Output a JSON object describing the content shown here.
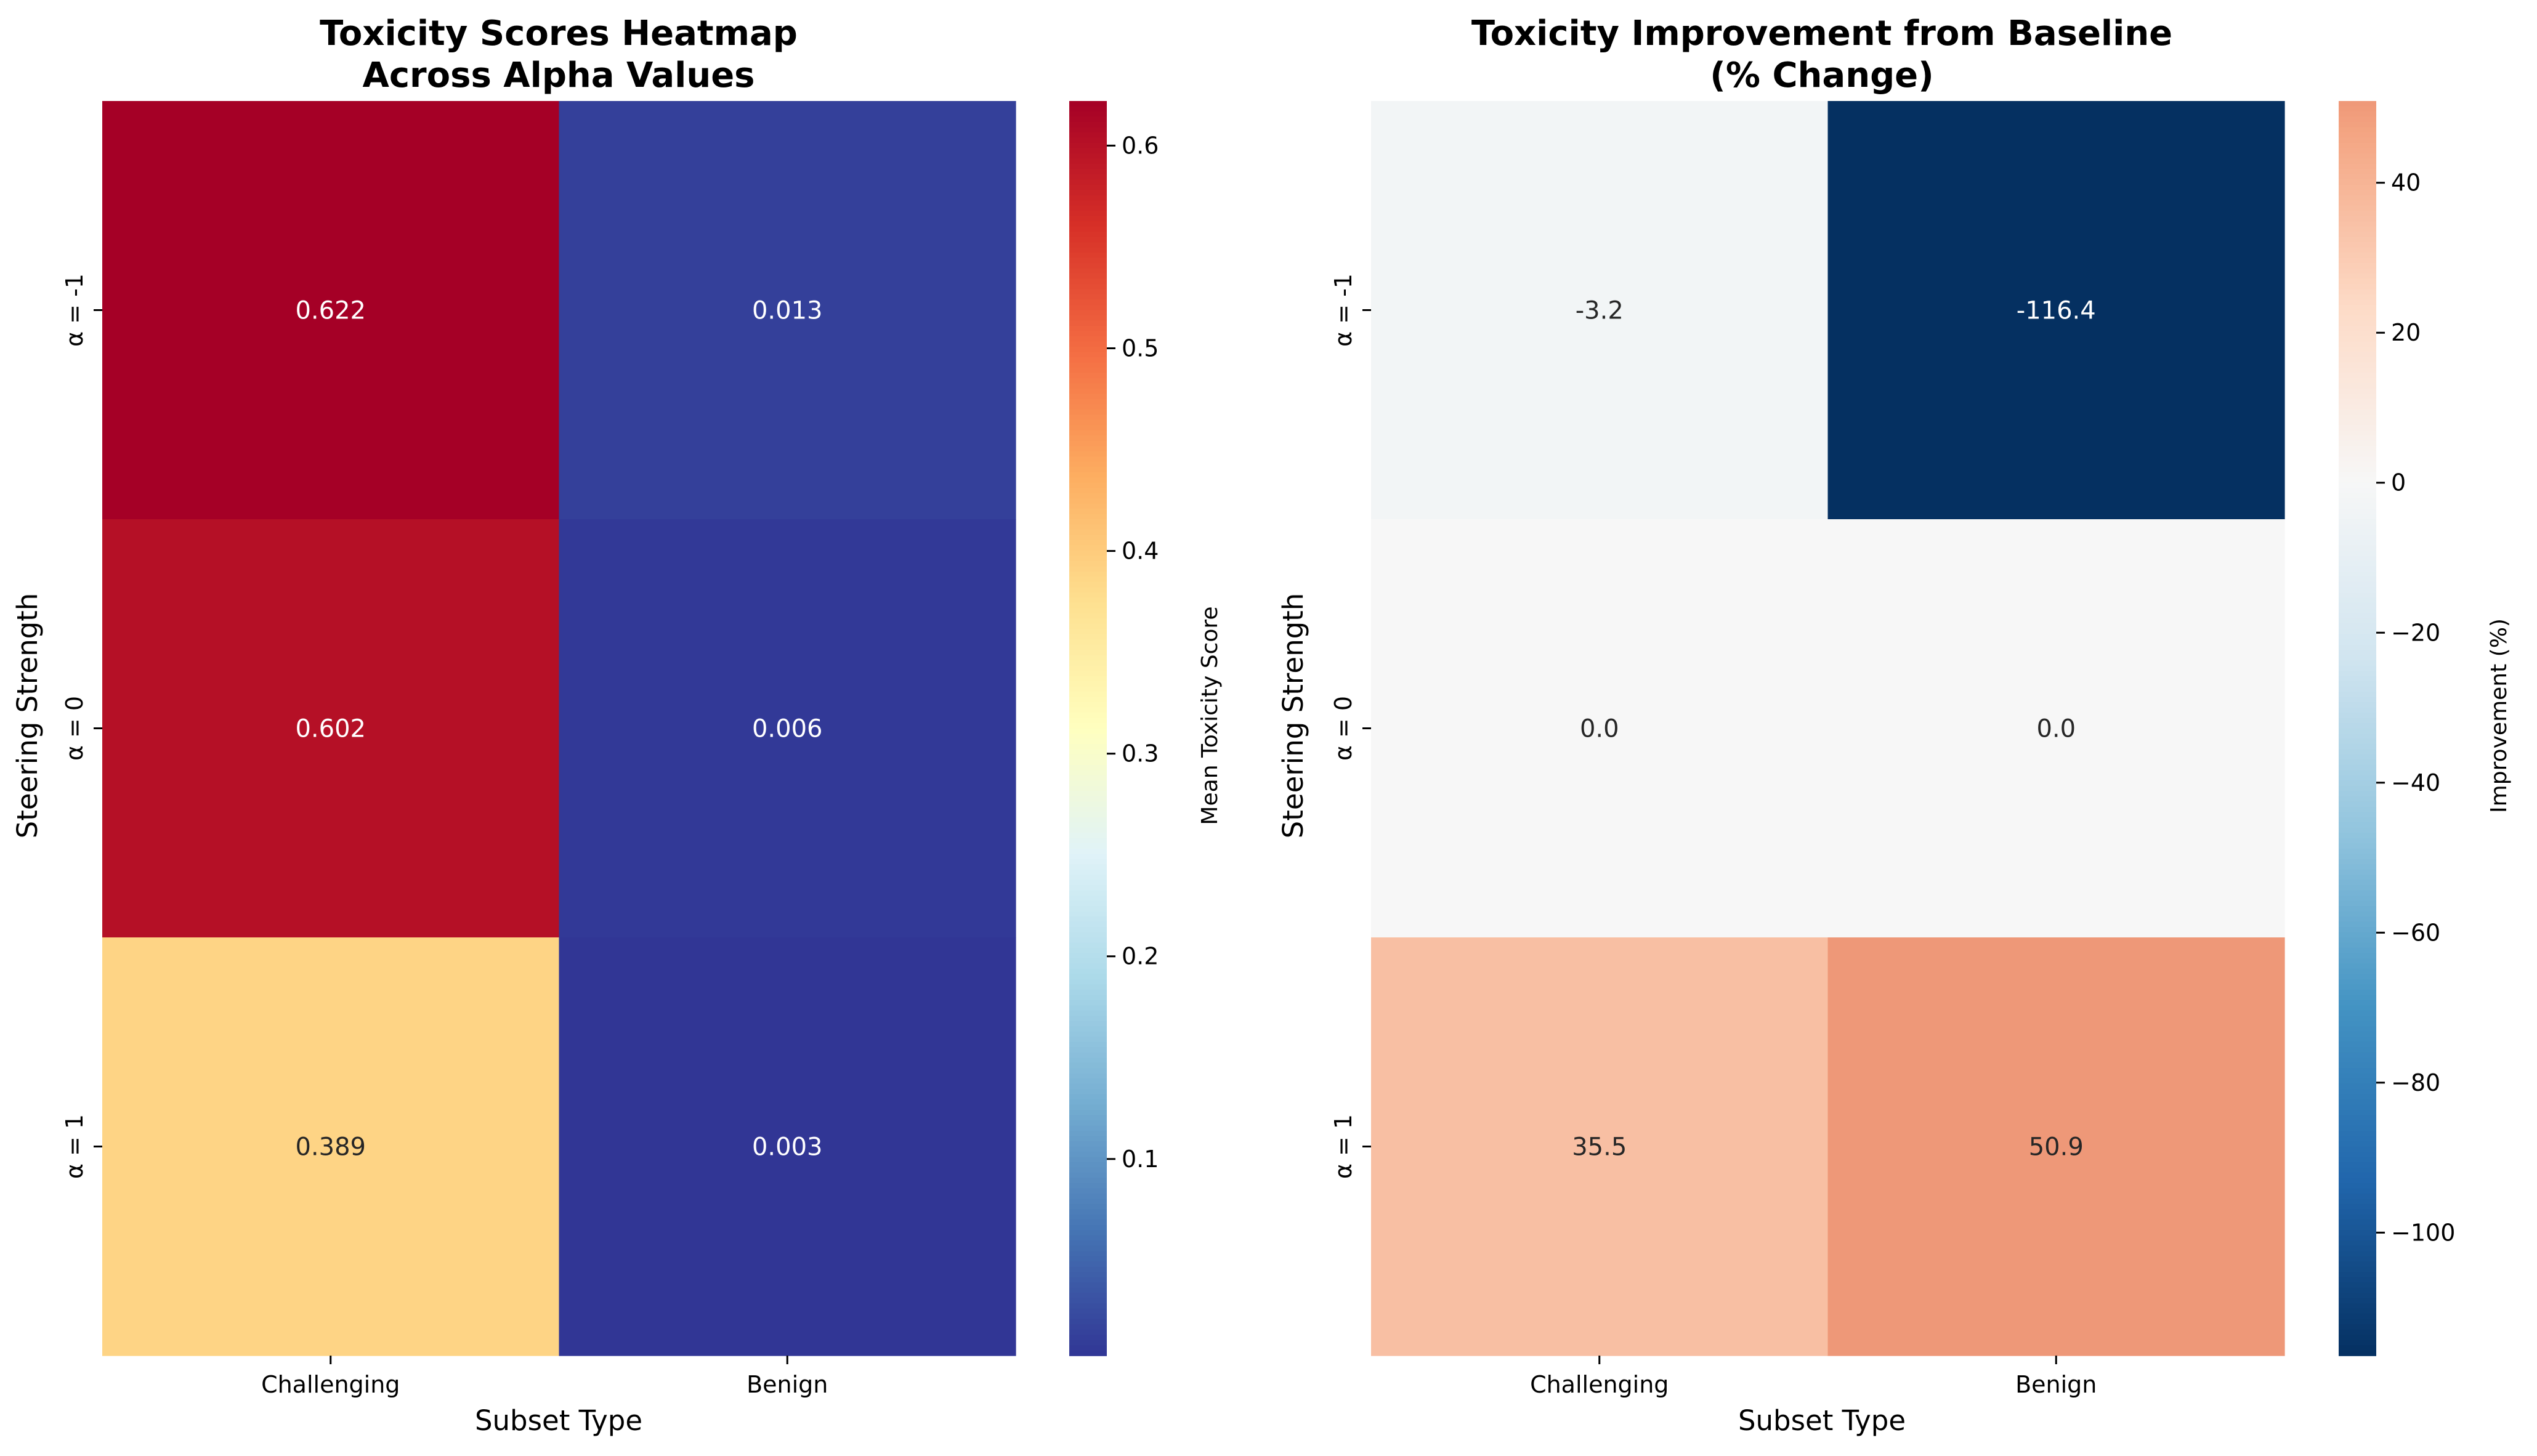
{
  "chart_data": [
    {
      "type": "heatmap",
      "title_lines": [
        "Toxicity Scores Heatmap",
        "Across Alpha Values"
      ],
      "xlabel": "Subset Type",
      "ylabel": "Steering Strength",
      "columns": [
        "Challenging",
        "Benign"
      ],
      "rows": [
        "α = -1",
        "α = 0",
        "α = 1"
      ],
      "values": [
        [
          0.622,
          0.013
        ],
        [
          0.602,
          0.006
        ],
        [
          0.389,
          0.003
        ]
      ],
      "cell_labels": [
        [
          "0.622",
          "0.013"
        ],
        [
          "0.602",
          "0.006"
        ],
        [
          "0.389",
          "0.003"
        ]
      ],
      "colormap": "RdYlBu_r",
      "vmin": 0.003,
      "vmax": 0.622,
      "colorbar": {
        "label": "Mean Toxicity Score",
        "ticks": [
          0.1,
          0.2,
          0.3,
          0.4,
          0.5,
          0.6
        ],
        "tick_labels": [
          "0.1",
          "0.2",
          "0.3",
          "0.4",
          "0.5",
          "0.6"
        ]
      }
    },
    {
      "type": "heatmap",
      "title_lines": [
        "Toxicity Improvement from Baseline",
        "(% Change)"
      ],
      "xlabel": "Subset Type",
      "ylabel": "Steering Strength",
      "columns": [
        "Challenging",
        "Benign"
      ],
      "rows": [
        "α = -1",
        "α = 0",
        "α = 1"
      ],
      "values": [
        [
          -3.2,
          -116.4
        ],
        [
          0.0,
          0.0
        ],
        [
          35.5,
          50.9
        ]
      ],
      "cell_labels": [
        [
          "-3.2",
          "-116.4"
        ],
        [
          "0.0",
          "0.0"
        ],
        [
          "35.5",
          "50.9"
        ]
      ],
      "colormap": "RdBu_r",
      "vmin": -116.4,
      "vmax": 50.9,
      "center": 0,
      "colorbar": {
        "label": "Improvement (%)",
        "ticks": [
          40,
          20,
          0,
          -20,
          -40,
          -60,
          -80,
          -100
        ],
        "tick_labels": [
          "40",
          "20",
          "0",
          "−20",
          "−40",
          "−60",
          "−80",
          "−100"
        ]
      }
    }
  ]
}
